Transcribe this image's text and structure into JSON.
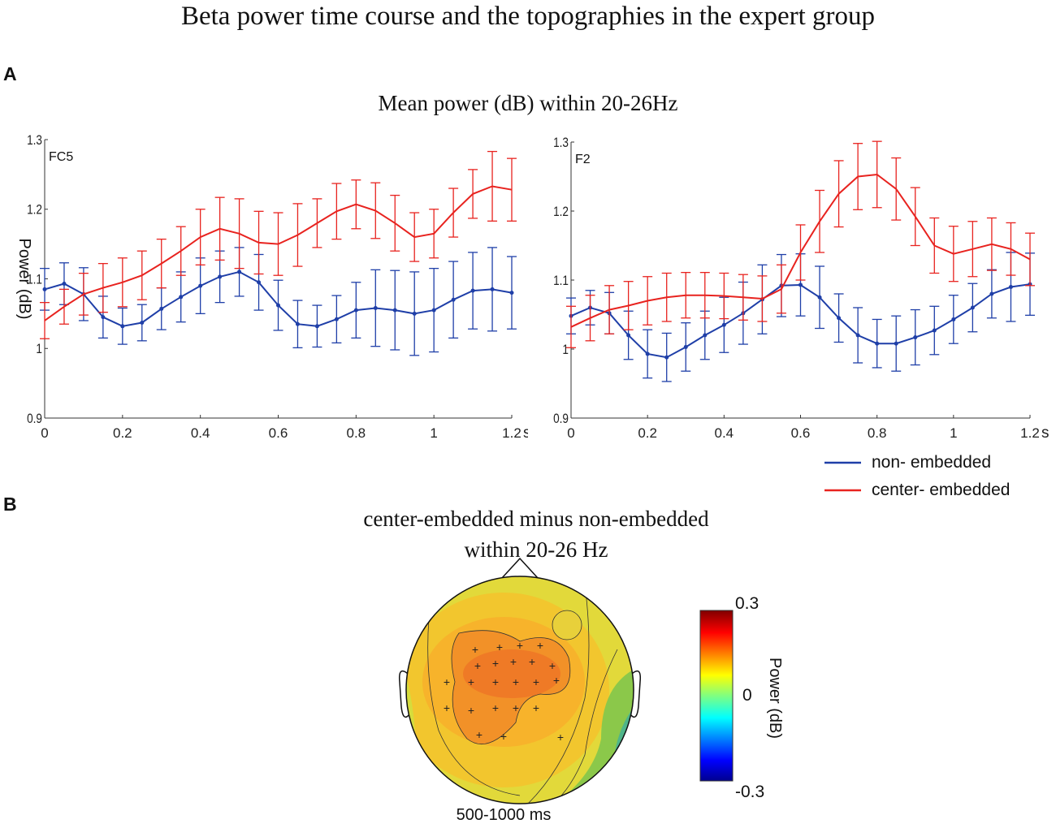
{
  "figure": {
    "title": "Beta power time course and the topographies in the expert group",
    "panel_a_label": "A",
    "panel_b_label": "B",
    "panel_a_subtitle": "Mean  power (dB) within 20-26Hz"
  },
  "legend": {
    "items": [
      {
        "label": "non- embedded",
        "color": "#1f3fa8"
      },
      {
        "label": "center- embedded",
        "color": "#e8231f"
      }
    ]
  },
  "chart_data": [
    {
      "type": "line",
      "title": "FC5",
      "xlabel": "s",
      "ylabel": "Power (dB)",
      "xlim": [
        0,
        1.2
      ],
      "ylim": [
        0.9,
        1.3
      ],
      "xticks": [
        "0",
        "0.2",
        "0.4",
        "0.6",
        "0.8",
        "1",
        "1.2"
      ],
      "yticks": [
        "0.9",
        "1",
        "1.1",
        "1.2",
        "1.3"
      ],
      "x": [
        0,
        0.05,
        0.1,
        0.15,
        0.2,
        0.25,
        0.3,
        0.35,
        0.4,
        0.45,
        0.5,
        0.55,
        0.6,
        0.65,
        0.7,
        0.75,
        0.8,
        0.85,
        0.9,
        0.95,
        1.0,
        1.05,
        1.1,
        1.15,
        1.2
      ],
      "series": [
        {
          "name": "non- embedded",
          "color": "#1f3fa8",
          "values": [
            1.085,
            1.093,
            1.078,
            1.045,
            1.032,
            1.037,
            1.057,
            1.074,
            1.09,
            1.103,
            1.11,
            1.095,
            1.062,
            1.035,
            1.032,
            1.042,
            1.055,
            1.058,
            1.055,
            1.05,
            1.055,
            1.07,
            1.083,
            1.085,
            1.08
          ],
          "errors": [
            0.03,
            0.03,
            0.038,
            0.03,
            0.026,
            0.026,
            0.03,
            0.036,
            0.04,
            0.037,
            0.035,
            0.04,
            0.036,
            0.034,
            0.03,
            0.034,
            0.04,
            0.055,
            0.057,
            0.06,
            0.06,
            0.055,
            0.055,
            0.06,
            0.052
          ]
        },
        {
          "name": "center- embedded",
          "color": "#e8231f",
          "values": [
            1.04,
            1.06,
            1.078,
            1.087,
            1.095,
            1.105,
            1.122,
            1.14,
            1.16,
            1.172,
            1.165,
            1.152,
            1.15,
            1.163,
            1.18,
            1.197,
            1.207,
            1.198,
            1.18,
            1.16,
            1.165,
            1.195,
            1.222,
            1.233,
            1.228
          ]
        }
      ]
    },
    {
      "type": "line",
      "title": "F2",
      "xlabel": "s",
      "ylabel": "",
      "xlim": [
        0,
        1.2
      ],
      "ylim": [
        0.9,
        1.3
      ],
      "xticks": [
        "0",
        "0.2",
        "0.4",
        "0.6",
        "0.8",
        "1",
        "1.2"
      ],
      "yticks": [
        "0.9",
        "1",
        "1.1",
        "1.2",
        "1.3"
      ],
      "x": [
        0,
        0.05,
        0.1,
        0.15,
        0.2,
        0.25,
        0.3,
        0.35,
        0.4,
        0.45,
        0.5,
        0.55,
        0.6,
        0.65,
        0.7,
        0.75,
        0.8,
        0.85,
        0.9,
        0.95,
        1.0,
        1.05,
        1.1,
        1.15,
        1.2
      ],
      "series": [
        {
          "name": "non- embedded",
          "color": "#1f3fa8",
          "values": [
            1.048,
            1.06,
            1.052,
            1.02,
            0.993,
            0.988,
            1.003,
            1.02,
            1.035,
            1.052,
            1.072,
            1.092,
            1.093,
            1.075,
            1.045,
            1.02,
            1.008,
            1.008,
            1.017,
            1.027,
            1.043,
            1.06,
            1.08,
            1.09,
            1.094
          ]
        },
        {
          "name": "center- embedded",
          "color": "#e8231f",
          "values": [
            1.032,
            1.045,
            1.057,
            1.063,
            1.07,
            1.075,
            1.078,
            1.078,
            1.077,
            1.075,
            1.073,
            1.087,
            1.14,
            1.185,
            1.225,
            1.25,
            1.253,
            1.232,
            1.192,
            1.15,
            1.138,
            1.145,
            1.152,
            1.145,
            1.13
          ],
          "errors": [
            0.03,
            0.033,
            0.035,
            0.035,
            0.035,
            0.035,
            0.033,
            0.033,
            0.033,
            0.033,
            0.033,
            0.035,
            0.04,
            0.045,
            0.048,
            0.048,
            0.048,
            0.045,
            0.042,
            0.04,
            0.04,
            0.04,
            0.038,
            0.038,
            0.038
          ]
        }
      ]
    },
    {
      "type": "heatmap",
      "title": "center-embedded  minus  non-embedded",
      "subtitle": "within  20-26 Hz",
      "time_window": "500-1000 ms",
      "colorbar": {
        "label": "Power (dB)",
        "min_label": "-0.3",
        "mid_label": "0",
        "max_label": "0.3",
        "range": [
          -0.3,
          0.3
        ]
      }
    }
  ]
}
